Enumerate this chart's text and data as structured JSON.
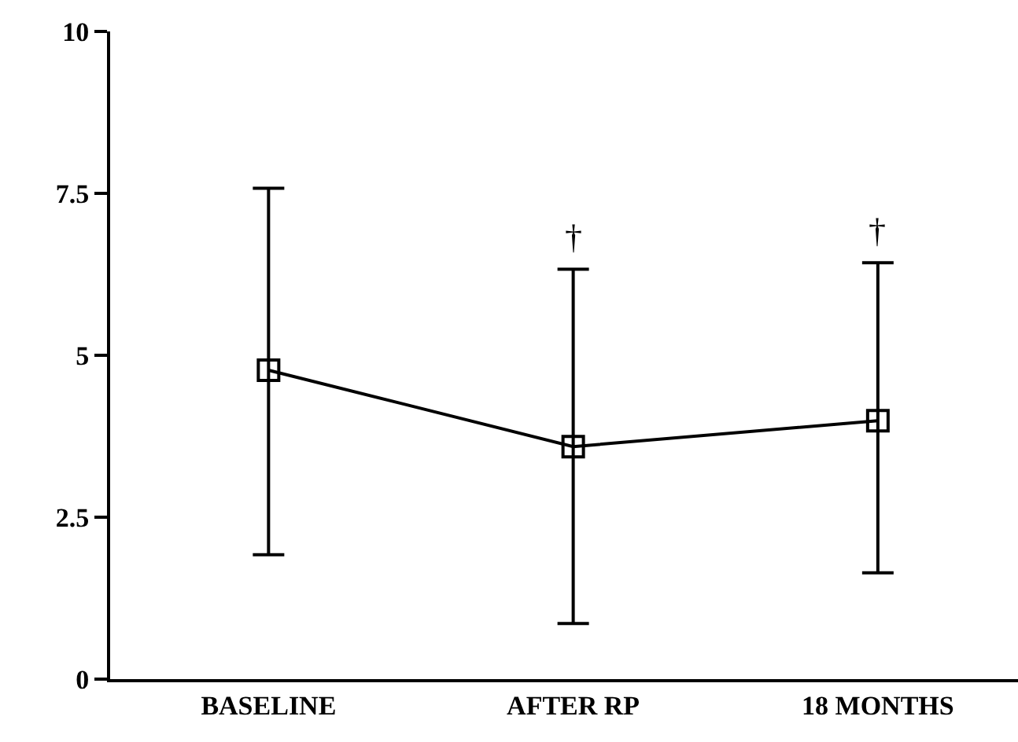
{
  "chart_data": {
    "type": "line",
    "categories": [
      "BASELINE",
      "AFTER RP",
      "18 MONTHS"
    ],
    "series": [
      {
        "color": "#000000",
        "values": [
          4.77,
          3.59,
          3.99
        ],
        "errors": [
          [
            1.92,
            7.58
          ],
          [
            0.86,
            6.33
          ],
          [
            1.64,
            6.43
          ]
        ]
      }
    ],
    "ylim": [
      0,
      10
    ],
    "yticks": [
      0,
      2.5,
      5,
      7.5,
      10
    ],
    "marker": "square",
    "line_style": "solid",
    "annotations": [
      "†",
      "†"
    ]
  }
}
